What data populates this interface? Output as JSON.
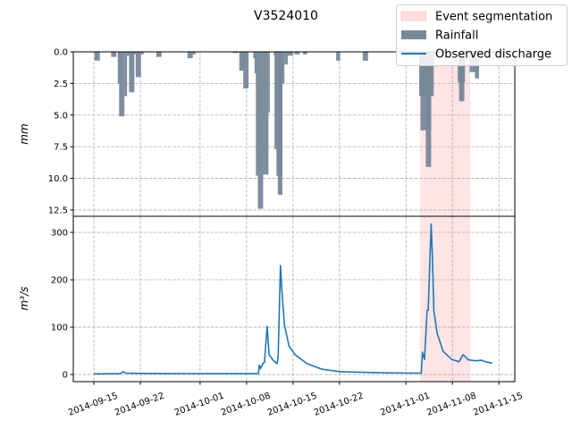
{
  "chart_data": {
    "type": "bar+line",
    "title": "V3524010",
    "x_reference_date": "2014-09-15",
    "x_unit": "days since 2014-09-15",
    "xlim_days": [
      -3.1,
      63.4
    ],
    "x_ticks": [
      {
        "day": 0,
        "label": "2014-09-15"
      },
      {
        "day": 7,
        "label": "2014-09-22"
      },
      {
        "day": 16,
        "label": "2014-10-01"
      },
      {
        "day": 23,
        "label": "2014-10-08"
      },
      {
        "day": 30,
        "label": "2014-10-15"
      },
      {
        "day": 37,
        "label": "2014-10-22"
      },
      {
        "day": 47,
        "label": "2014-11-01"
      },
      {
        "day": 54,
        "label": "2014-11-08"
      },
      {
        "day": 61,
        "label": "2014-11-15"
      }
    ],
    "event_segmentation": {
      "start_day": 49.1,
      "end_day": 56.7,
      "color": "#ffe0e0"
    },
    "rainfall": {
      "ylabel": "mm",
      "ylim": [
        13,
        0
      ],
      "y_ticks": [
        "0.0",
        "2.5",
        "5.0",
        "7.5",
        "10.0",
        "12.5"
      ],
      "y_tick_values": [
        0,
        2.5,
        5,
        7.5,
        10,
        12.5
      ],
      "color": "#778899",
      "bars": [
        [
          0.1,
          0.9,
          0.7
        ],
        [
          2.6,
          3.4,
          0.4
        ],
        [
          3.6,
          4.0,
          2.5
        ],
        [
          3.8,
          4.6,
          5.1
        ],
        [
          4.6,
          5.0,
          3.5
        ],
        [
          5.0,
          5.3,
          0.3
        ],
        [
          5.3,
          6.1,
          3.2
        ],
        [
          6.1,
          6.3,
          0.2
        ],
        [
          6.3,
          7.1,
          2.0
        ],
        [
          7.1,
          7.5,
          0.2
        ],
        [
          9.4,
          10.2,
          0.4
        ],
        [
          14.1,
          14.9,
          0.5
        ],
        [
          14.9,
          15.3,
          0.2
        ],
        [
          20.9,
          21.7,
          0.1
        ],
        [
          21.9,
          22.7,
          1.5
        ],
        [
          22.5,
          23.3,
          2.9
        ],
        [
          24.0,
          24.3,
          0.5
        ],
        [
          24.2,
          24.5,
          1.7
        ],
        [
          24.4,
          24.7,
          9.8
        ],
        [
          24.7,
          25.5,
          12.4
        ],
        [
          25.5,
          26.3,
          9.7
        ],
        [
          26.3,
          26.5,
          4.8
        ],
        [
          27.1,
          27.5,
          0.3
        ],
        [
          27.2,
          27.6,
          7.7
        ],
        [
          27.5,
          28.4,
          9.8
        ],
        [
          27.7,
          28.4,
          11.3
        ],
        [
          28.4,
          28.7,
          2.5
        ],
        [
          28.7,
          29.2,
          1.0
        ],
        [
          29.2,
          30.0,
          0.3
        ],
        [
          30.2,
          31.0,
          0.2
        ],
        [
          31.5,
          32.1,
          0.2
        ],
        [
          36.5,
          37.1,
          0.7
        ],
        [
          40.5,
          41.3,
          0.7
        ],
        [
          49.0,
          51.2,
          3.5
        ],
        [
          49.2,
          50.8,
          6.2
        ],
        [
          50.0,
          50.8,
          9.1
        ],
        [
          51.2,
          51.5,
          0.3
        ],
        [
          54.8,
          55.9,
          2.4
        ],
        [
          55.0,
          55.8,
          3.9
        ],
        [
          56.6,
          58.0,
          1.6
        ],
        [
          57.4,
          58.0,
          2.1
        ]
      ]
    },
    "discharge": {
      "ylabel": "m³/s",
      "ylim": [
        -15,
        334
      ],
      "y_ticks": [
        "0",
        "100",
        "200",
        "300"
      ],
      "y_tick_values": [
        0,
        100,
        200,
        300
      ],
      "color": "#1f77b4",
      "points": [
        [
          0,
          1.5
        ],
        [
          4.0,
          1.8
        ],
        [
          4.4,
          6
        ],
        [
          4.8,
          3
        ],
        [
          6,
          2.5
        ],
        [
          10,
          2.2
        ],
        [
          15,
          2
        ],
        [
          20,
          1.8
        ],
        [
          23,
          1.7
        ],
        [
          24.8,
          2
        ],
        [
          24.9,
          20
        ],
        [
          25.1,
          13
        ],
        [
          25.5,
          24
        ],
        [
          25.7,
          26
        ],
        [
          26.1,
          102
        ],
        [
          26.4,
          42
        ],
        [
          27.0,
          30
        ],
        [
          27.6,
          23
        ],
        [
          27.75,
          38
        ],
        [
          28.1,
          230
        ],
        [
          28.3,
          181
        ],
        [
          28.7,
          105
        ],
        [
          29.4,
          60
        ],
        [
          30.3,
          42
        ],
        [
          32.1,
          23
        ],
        [
          34.4,
          11
        ],
        [
          37.1,
          6
        ],
        [
          40,
          5
        ],
        [
          44,
          3.5
        ],
        [
          49.3,
          3
        ],
        [
          49.5,
          47
        ],
        [
          49.8,
          32
        ],
        [
          50.2,
          136
        ],
        [
          50.35,
          136
        ],
        [
          50.8,
          318
        ],
        [
          51.0,
          243
        ],
        [
          51.2,
          136
        ],
        [
          51.7,
          87
        ],
        [
          52.6,
          49
        ],
        [
          53.9,
          32
        ],
        [
          55.0,
          27
        ],
        [
          55.6,
          42
        ],
        [
          56.4,
          31
        ],
        [
          57.5,
          29
        ],
        [
          58.4,
          30
        ],
        [
          59.0,
          27
        ],
        [
          60.0,
          24
        ]
      ]
    },
    "legend": {
      "placement": "top-right",
      "entries": [
        {
          "label": "Event segmentation",
          "kind": "patch",
          "color": "#ffdddd"
        },
        {
          "label": "Rainfall",
          "kind": "patch",
          "color": "#778899"
        },
        {
          "label": "Observed discharge",
          "kind": "line",
          "color": "#1f77b4"
        }
      ]
    },
    "grid": true
  }
}
